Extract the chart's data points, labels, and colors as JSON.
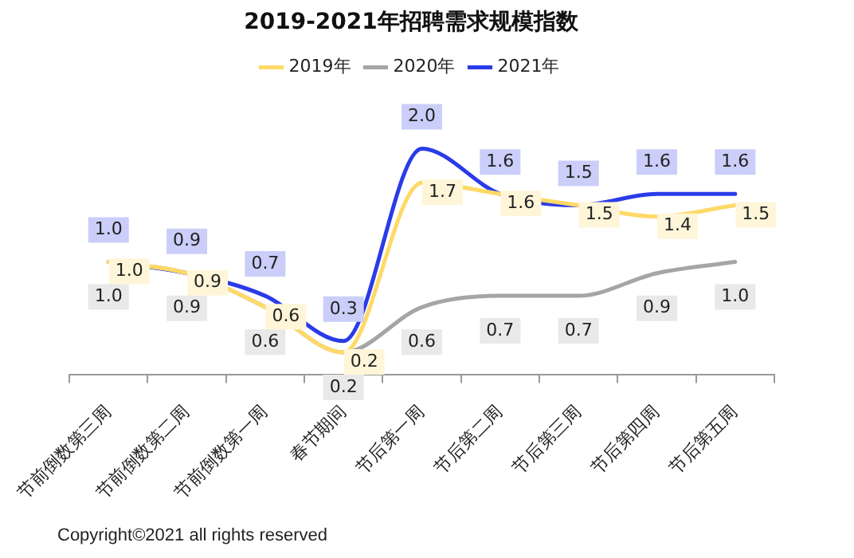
{
  "chart_data": {
    "type": "line",
    "title": "2019-2021年招聘需求规模指数",
    "categories": [
      "节前倒数第三周",
      "节前倒数第二周",
      "节前倒数第一周",
      "春节期间",
      "节后第一周",
      "节后第二周",
      "节后第三周",
      "节后第四周",
      "节后第五周"
    ],
    "series": [
      {
        "name": "2019年",
        "color": "#ffd966",
        "values": [
          1.0,
          0.9,
          0.6,
          0.2,
          1.7,
          1.6,
          1.5,
          1.4,
          1.5
        ],
        "value_labels": [
          "1.0",
          "0.9",
          "0.6",
          "0.2",
          "1.7",
          "1.6",
          "1.5",
          "1.4",
          "1.5"
        ]
      },
      {
        "name": "2020年",
        "color": "#a5a5a5",
        "values": [
          1.0,
          0.9,
          0.6,
          0.2,
          0.6,
          0.7,
          0.7,
          0.9,
          1.0
        ],
        "value_labels": [
          "1.0",
          "0.9",
          "0.6",
          "0.2",
          "0.6",
          "0.7",
          "0.7",
          "0.9",
          "1.0"
        ]
      },
      {
        "name": "2021年",
        "color": "#2a3be8",
        "values": [
          1.0,
          0.9,
          0.7,
          0.3,
          2.0,
          1.6,
          1.5,
          1.6,
          1.6
        ],
        "value_labels": [
          "1.0",
          "0.9",
          "0.7",
          "0.3",
          "2.0",
          "1.6",
          "1.5",
          "1.6",
          "1.6"
        ]
      }
    ],
    "legend": "top",
    "grid": false,
    "marker": "none",
    "line_style": "solid",
    "annotations": [
      "Copyright©2021 all rights reserved"
    ]
  }
}
